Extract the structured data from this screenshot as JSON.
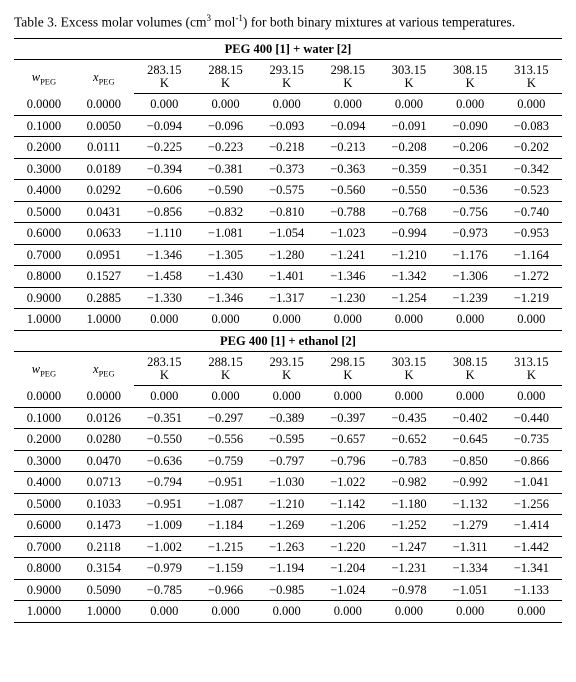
{
  "caption_prefix": "Table 3. Excess molar volumes (cm",
  "caption_sup": "3",
  "caption_mid": " mol",
  "caption_sup2": "-1",
  "caption_suffix": ") for both binary mixtures at various temperatures.",
  "section1_title": "PEG 400 [1] + water [2]",
  "section2_title": "PEG 400 [1] + ethanol [2]",
  "col_w_sym": "w",
  "col_w_sub": "PEG",
  "col_x_sym": "x",
  "col_x_sub": "PEG",
  "temps": [
    "283.15",
    "288.15",
    "293.15",
    "298.15",
    "303.15",
    "308.15",
    "313.15"
  ],
  "temp_unit": "K",
  "t1": {
    "rows": [
      {
        "w": "0.0000",
        "x": "0.0000",
        "v": [
          "0.000",
          "0.000",
          "0.000",
          "0.000",
          "0.000",
          "0.000",
          "0.000"
        ]
      },
      {
        "w": "0.1000",
        "x": "0.0050",
        "v": [
          "−0.094",
          "−0.096",
          "−0.093",
          "−0.094",
          "−0.091",
          "−0.090",
          "−0.083"
        ]
      },
      {
        "w": "0.2000",
        "x": "0.0111",
        "v": [
          "−0.225",
          "−0.223",
          "−0.218",
          "−0.213",
          "−0.208",
          "−0.206",
          "−0.202"
        ]
      },
      {
        "w": "0.3000",
        "x": "0.0189",
        "v": [
          "−0.394",
          "−0.381",
          "−0.373",
          "−0.363",
          "−0.359",
          "−0.351",
          "−0.342"
        ]
      },
      {
        "w": "0.4000",
        "x": "0.0292",
        "v": [
          "−0.606",
          "−0.590",
          "−0.575",
          "−0.560",
          "−0.550",
          "−0.536",
          "−0.523"
        ]
      },
      {
        "w": "0.5000",
        "x": "0.0431",
        "v": [
          "−0.856",
          "−0.832",
          "−0.810",
          "−0.788",
          "−0.768",
          "−0.756",
          "−0.740"
        ]
      },
      {
        "w": "0.6000",
        "x": "0.0633",
        "v": [
          "−1.110",
          "−1.081",
          "−1.054",
          "−1.023",
          "−0.994",
          "−0.973",
          "−0.953"
        ]
      },
      {
        "w": "0.7000",
        "x": "0.0951",
        "v": [
          "−1.346",
          "−1.305",
          "−1.280",
          "−1.241",
          "−1.210",
          "−1.176",
          "−1.164"
        ]
      },
      {
        "w": "0.8000",
        "x": "0.1527",
        "v": [
          "−1.458",
          "−1.430",
          "−1.401",
          "−1.346",
          "−1.342",
          "−1.306",
          "−1.272"
        ]
      },
      {
        "w": "0.9000",
        "x": "0.2885",
        "v": [
          "−1.330",
          "−1.346",
          "−1.317",
          "−1.230",
          "−1.254",
          "−1.239",
          "−1.219"
        ]
      },
      {
        "w": "1.0000",
        "x": "1.0000",
        "v": [
          "0.000",
          "0.000",
          "0.000",
          "0.000",
          "0.000",
          "0.000",
          "0.000"
        ]
      }
    ]
  },
  "t2": {
    "rows": [
      {
        "w": "0.0000",
        "x": "0.0000",
        "v": [
          "0.000",
          "0.000",
          "0.000",
          "0.000",
          "0.000",
          "0.000",
          "0.000"
        ]
      },
      {
        "w": "0.1000",
        "x": "0.0126",
        "v": [
          "−0.351",
          "−0.297",
          "−0.389",
          "−0.397",
          "−0.435",
          "−0.402",
          "−0.440"
        ]
      },
      {
        "w": "0.2000",
        "x": "0.0280",
        "v": [
          "−0.550",
          "−0.556",
          "−0.595",
          "−0.657",
          "−0.652",
          "−0.645",
          "−0.735"
        ]
      },
      {
        "w": "0.3000",
        "x": "0.0470",
        "v": [
          "−0.636",
          "−0.759",
          "−0.797",
          "−0.796",
          "−0.783",
          "−0.850",
          "−0.866"
        ]
      },
      {
        "w": "0.4000",
        "x": "0.0713",
        "v": [
          "−0.794",
          "−0.951",
          "−1.030",
          "−1.022",
          "−0.982",
          "−0.992",
          "−1.041"
        ]
      },
      {
        "w": "0.5000",
        "x": "0.1033",
        "v": [
          "−0.951",
          "−1.087",
          "−1.210",
          "−1.142",
          "−1.180",
          "−1.132",
          "−1.256"
        ]
      },
      {
        "w": "0.6000",
        "x": "0.1473",
        "v": [
          "−1.009",
          "−1.184",
          "−1.269",
          "−1.206",
          "−1.252",
          "−1.279",
          "−1.414"
        ]
      },
      {
        "w": "0.7000",
        "x": "0.2118",
        "v": [
          "−1.002",
          "−1.215",
          "−1.263",
          "−1.220",
          "−1.247",
          "−1.311",
          "−1.442"
        ]
      },
      {
        "w": "0.8000",
        "x": "0.3154",
        "v": [
          "−0.979",
          "−1.159",
          "−1.194",
          "−1.204",
          "−1.231",
          "−1.334",
          "−1.341"
        ]
      },
      {
        "w": "0.9000",
        "x": "0.5090",
        "v": [
          "−0.785",
          "−0.966",
          "−0.985",
          "−1.024",
          "−0.978",
          "−1.051",
          "−1.133"
        ]
      },
      {
        "w": "1.0000",
        "x": "1.0000",
        "v": [
          "0.000",
          "0.000",
          "0.000",
          "0.000",
          "0.000",
          "0.000",
          "0.000"
        ]
      }
    ]
  }
}
